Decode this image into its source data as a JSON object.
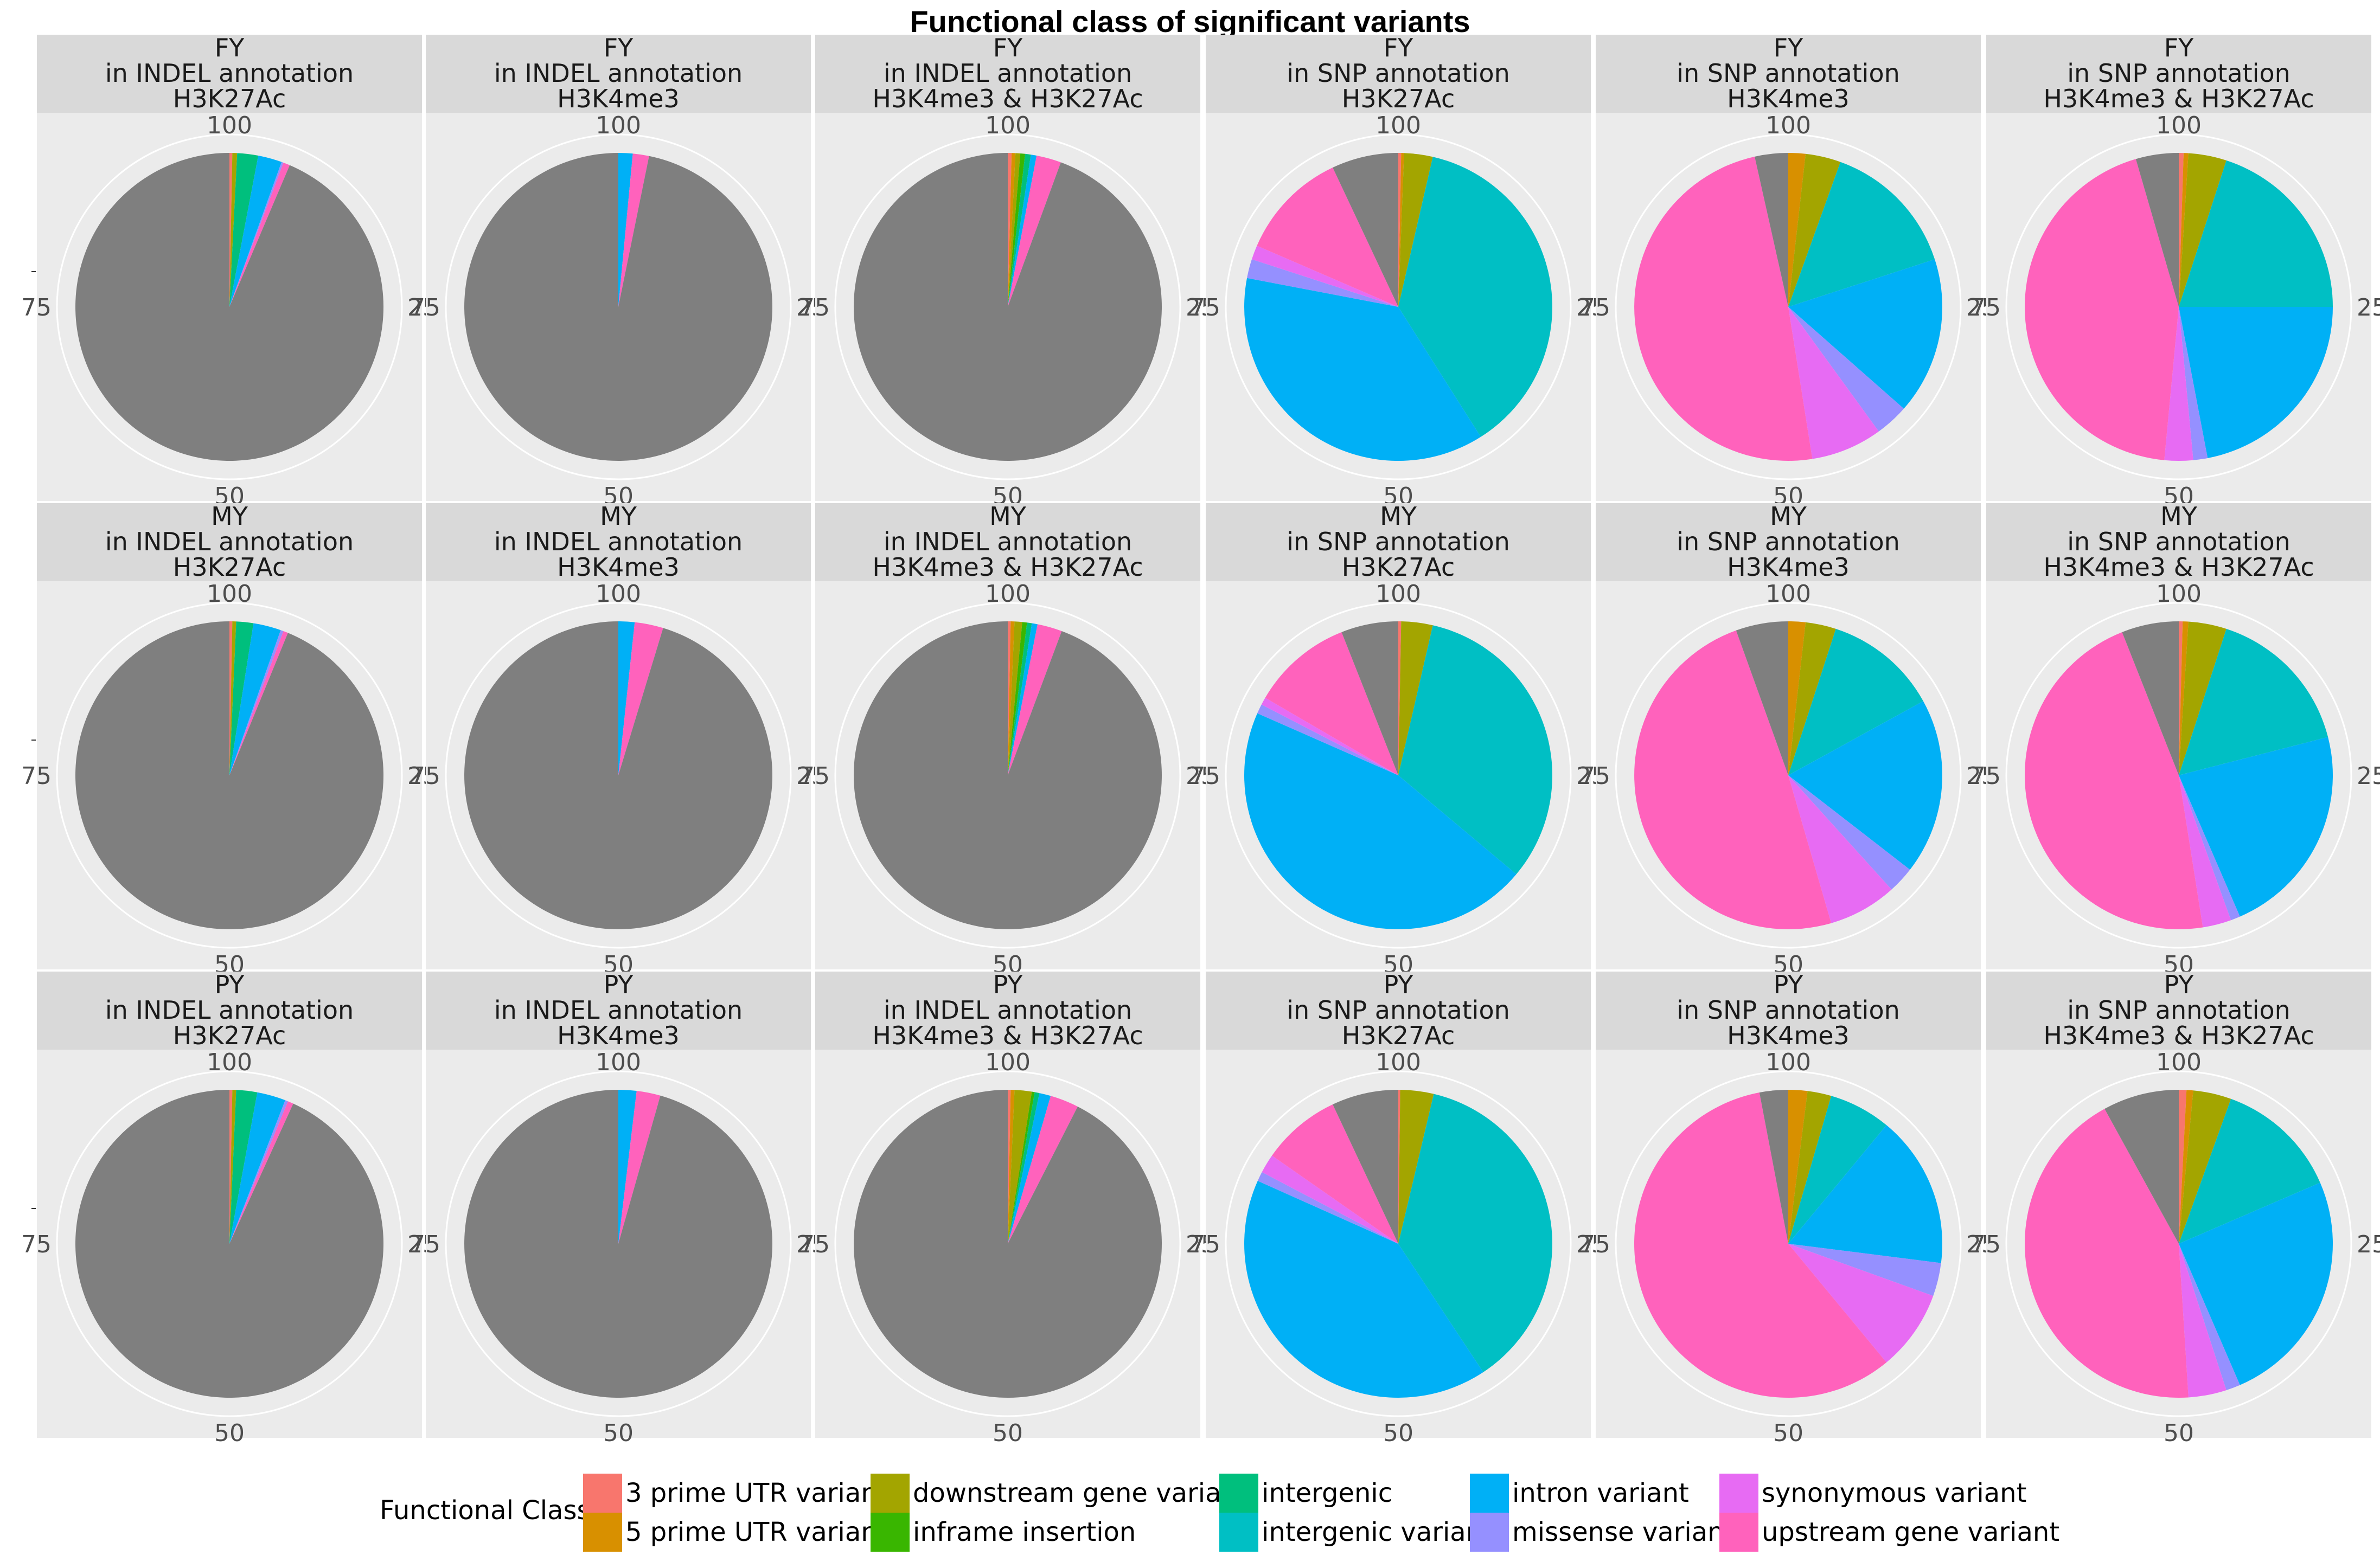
{
  "chart_data": {
    "type": "pie",
    "title": "Functional class of significant variants",
    "legend": {
      "title": "Functional Class",
      "position": "bottom",
      "entries": [
        {
          "name": "3 prime UTR variant",
          "color": "#F8766D"
        },
        {
          "name": "5 prime UTR variant",
          "color": "#D89000"
        },
        {
          "name": "downstream gene variant",
          "color": "#A3A500"
        },
        {
          "name": "inframe insertion",
          "color": "#39B600"
        },
        {
          "name": "intergenic",
          "color": "#00BF7D"
        },
        {
          "name": "intergenic variant",
          "color": "#00BFC4"
        },
        {
          "name": "intron variant",
          "color": "#00B0F6"
        },
        {
          "name": "missense variant",
          "color": "#9590FF"
        },
        {
          "name": "synonymous variant",
          "color": "#E76BF3"
        },
        {
          "name": "upstream gene variant",
          "color": "#FF62BC"
        }
      ],
      "other_color": "#7F7F7F"
    },
    "angle_ticks": [
      "100",
      "25",
      "50",
      "75"
    ],
    "panels": [
      {
        "group": "FY",
        "annotation": "in INDEL annotation",
        "mark": "H3K27Ac",
        "slices": [
          {
            "c": "3 prime UTR variant",
            "v": 0.3
          },
          {
            "c": "downstream gene variant",
            "v": 0.5
          },
          {
            "c": "intergenic",
            "v": 2.2
          },
          {
            "c": "intron variant",
            "v": 2.5
          },
          {
            "c": "missense variant",
            "v": 0.2
          },
          {
            "c": "upstream gene variant",
            "v": 0.7
          },
          {
            "c": "other",
            "v": 93.6
          }
        ]
      },
      {
        "group": "FY",
        "annotation": "in INDEL annotation",
        "mark": "H3K4me3",
        "slices": [
          {
            "c": "intron variant",
            "v": 1.5
          },
          {
            "c": "upstream gene variant",
            "v": 1.7
          },
          {
            "c": "other",
            "v": 96.8
          }
        ]
      },
      {
        "group": "FY",
        "annotation": "in INDEL annotation",
        "mark": "H3K4me3 & H3K27Ac",
        "slices": [
          {
            "c": "3 prime UTR variant",
            "v": 0.4
          },
          {
            "c": "5 prime UTR variant",
            "v": 0.4
          },
          {
            "c": "downstream gene variant",
            "v": 0.5
          },
          {
            "c": "inframe insertion",
            "v": 0.5
          },
          {
            "c": "intergenic",
            "v": 0.6
          },
          {
            "c": "intron variant",
            "v": 0.6
          },
          {
            "c": "upstream gene variant",
            "v": 2.6
          },
          {
            "c": "other",
            "v": 94.4
          }
        ]
      },
      {
        "group": "FY",
        "annotation": "in SNP annotation",
        "mark": "H3K27Ac",
        "slices": [
          {
            "c": "3 prime UTR variant",
            "v": 0.3
          },
          {
            "c": "5 prime UTR variant",
            "v": 0.3
          },
          {
            "c": "downstream gene variant",
            "v": 3.0
          },
          {
            "c": "intergenic variant",
            "v": 37.4
          },
          {
            "c": "intron variant",
            "v": 37.0
          },
          {
            "c": "missense variant",
            "v": 2.0
          },
          {
            "c": "synonymous variant",
            "v": 1.5
          },
          {
            "c": "upstream gene variant",
            "v": 11.5
          },
          {
            "c": "other",
            "v": 7.0
          }
        ]
      },
      {
        "group": "FY",
        "annotation": "in SNP annotation",
        "mark": "H3K4me3",
        "slices": [
          {
            "c": "5 prime UTR variant",
            "v": 1.8
          },
          {
            "c": "downstream gene variant",
            "v": 3.7
          },
          {
            "c": "intergenic variant",
            "v": 14.5
          },
          {
            "c": "intron variant",
            "v": 16.5
          },
          {
            "c": "missense variant",
            "v": 3.5
          },
          {
            "c": "synonymous variant",
            "v": 7.5
          },
          {
            "c": "upstream gene variant",
            "v": 49.0
          },
          {
            "c": "other",
            "v": 3.5
          }
        ]
      },
      {
        "group": "FY",
        "annotation": "in SNP annotation",
        "mark": "H3K4me3 & H3K27Ac",
        "slices": [
          {
            "c": "3 prime UTR variant",
            "v": 0.5
          },
          {
            "c": "5 prime UTR variant",
            "v": 0.5
          },
          {
            "c": "downstream gene variant",
            "v": 4.0
          },
          {
            "c": "intergenic variant",
            "v": 20.0
          },
          {
            "c": "intron variant",
            "v": 22.0
          },
          {
            "c": "missense variant",
            "v": 1.5
          },
          {
            "c": "synonymous variant",
            "v": 3.0
          },
          {
            "c": "upstream gene variant",
            "v": 44.0
          },
          {
            "c": "other",
            "v": 4.5
          }
        ]
      },
      {
        "group": "MY",
        "annotation": "in INDEL annotation",
        "mark": "H3K27Ac",
        "slices": [
          {
            "c": "3 prime UTR variant",
            "v": 0.3
          },
          {
            "c": "downstream gene variant",
            "v": 0.4
          },
          {
            "c": "intergenic",
            "v": 1.8
          },
          {
            "c": "intron variant",
            "v": 2.9
          },
          {
            "c": "missense variant",
            "v": 0.3
          },
          {
            "c": "upstream gene variant",
            "v": 0.5
          },
          {
            "c": "other",
            "v": 93.8
          }
        ]
      },
      {
        "group": "MY",
        "annotation": "in INDEL annotation",
        "mark": "H3K4me3",
        "slices": [
          {
            "c": "intron variant",
            "v": 1.7
          },
          {
            "c": "upstream gene variant",
            "v": 3.0
          },
          {
            "c": "other",
            "v": 95.3
          }
        ]
      },
      {
        "group": "MY",
        "annotation": "in INDEL annotation",
        "mark": "H3K4me3 & H3K27Ac",
        "slices": [
          {
            "c": "3 prime UTR variant",
            "v": 0.3
          },
          {
            "c": "5 prime UTR variant",
            "v": 0.4
          },
          {
            "c": "downstream gene variant",
            "v": 0.8
          },
          {
            "c": "inframe insertion",
            "v": 0.5
          },
          {
            "c": "intergenic",
            "v": 0.5
          },
          {
            "c": "intron variant",
            "v": 0.6
          },
          {
            "c": "upstream gene variant",
            "v": 2.6
          },
          {
            "c": "other",
            "v": 94.3
          }
        ]
      },
      {
        "group": "MY",
        "annotation": "in SNP annotation",
        "mark": "H3K27Ac",
        "slices": [
          {
            "c": "3 prime UTR variant",
            "v": 0.3
          },
          {
            "c": "downstream gene variant",
            "v": 3.3
          },
          {
            "c": "intergenic variant",
            "v": 32.5
          },
          {
            "c": "intron variant",
            "v": 45.5
          },
          {
            "c": "missense variant",
            "v": 1.0
          },
          {
            "c": "synonymous variant",
            "v": 0.8
          },
          {
            "c": "upstream gene variant",
            "v": 10.6
          },
          {
            "c": "other",
            "v": 6.0
          }
        ]
      },
      {
        "group": "MY",
        "annotation": "in SNP annotation",
        "mark": "H3K4me3",
        "slices": [
          {
            "c": "5 prime UTR variant",
            "v": 1.8
          },
          {
            "c": "downstream gene variant",
            "v": 3.2
          },
          {
            "c": "intergenic variant",
            "v": 12.0
          },
          {
            "c": "intron variant",
            "v": 18.5
          },
          {
            "c": "missense variant",
            "v": 2.8
          },
          {
            "c": "synonymous variant",
            "v": 7.2
          },
          {
            "c": "upstream gene variant",
            "v": 49.0
          },
          {
            "c": "other",
            "v": 5.5
          }
        ]
      },
      {
        "group": "MY",
        "annotation": "in SNP annotation",
        "mark": "H3K4me3 & H3K27Ac",
        "slices": [
          {
            "c": "3 prime UTR variant",
            "v": 0.4
          },
          {
            "c": "5 prime UTR variant",
            "v": 0.6
          },
          {
            "c": "downstream gene variant",
            "v": 4.0
          },
          {
            "c": "intergenic variant",
            "v": 16.0
          },
          {
            "c": "intron variant",
            "v": 22.5
          },
          {
            "c": "missense variant",
            "v": 1.0
          },
          {
            "c": "synonymous variant",
            "v": 3.0
          },
          {
            "c": "upstream gene variant",
            "v": 46.5
          },
          {
            "c": "other",
            "v": 6.0
          }
        ]
      },
      {
        "group": "PY",
        "annotation": "in INDEL annotation",
        "mark": "H3K27Ac",
        "slices": [
          {
            "c": "3 prime UTR variant",
            "v": 0.3
          },
          {
            "c": "downstream gene variant",
            "v": 0.4
          },
          {
            "c": "intergenic",
            "v": 2.2
          },
          {
            "c": "intron variant",
            "v": 3.0
          },
          {
            "c": "missense variant",
            "v": 0.3
          },
          {
            "c": "upstream gene variant",
            "v": 0.6
          },
          {
            "c": "other",
            "v": 93.2
          }
        ]
      },
      {
        "group": "PY",
        "annotation": "in INDEL annotation",
        "mark": "H3K4me3",
        "slices": [
          {
            "c": "intron variant",
            "v": 1.9
          },
          {
            "c": "upstream gene variant",
            "v": 2.5
          },
          {
            "c": "other",
            "v": 95.6
          }
        ]
      },
      {
        "group": "PY",
        "annotation": "in INDEL annotation",
        "mark": "H3K4me3 & H3K27Ac",
        "slices": [
          {
            "c": "3 prime UTR variant",
            "v": 0.3
          },
          {
            "c": "5 prime UTR variant",
            "v": 0.4
          },
          {
            "c": "downstream gene variant",
            "v": 1.8
          },
          {
            "c": "inframe insertion",
            "v": 0.3
          },
          {
            "c": "intergenic",
            "v": 0.5
          },
          {
            "c": "intron variant",
            "v": 1.2
          },
          {
            "c": "upstream gene variant",
            "v": 3.0
          },
          {
            "c": "other",
            "v": 92.5
          }
        ]
      },
      {
        "group": "PY",
        "annotation": "in SNP annotation",
        "mark": "H3K27Ac",
        "slices": [
          {
            "c": "3 prime UTR variant",
            "v": 0.2
          },
          {
            "c": "downstream gene variant",
            "v": 3.5
          },
          {
            "c": "intergenic variant",
            "v": 37.0
          },
          {
            "c": "intron variant",
            "v": 41.0
          },
          {
            "c": "missense variant",
            "v": 1.0
          },
          {
            "c": "synonymous variant",
            "v": 2.0
          },
          {
            "c": "upstream gene variant",
            "v": 8.3
          },
          {
            "c": "other",
            "v": 7.0
          }
        ]
      },
      {
        "group": "PY",
        "annotation": "in SNP annotation",
        "mark": "H3K4me3",
        "slices": [
          {
            "c": "5 prime UTR variant",
            "v": 2.0
          },
          {
            "c": "downstream gene variant",
            "v": 2.5
          },
          {
            "c": "intergenic variant",
            "v": 6.5
          },
          {
            "c": "intron variant",
            "v": 16.0
          },
          {
            "c": "missense variant",
            "v": 3.5
          },
          {
            "c": "synonymous variant",
            "v": 8.5
          },
          {
            "c": "upstream gene variant",
            "v": 58.0
          },
          {
            "c": "other",
            "v": 3.0
          }
        ]
      },
      {
        "group": "PY",
        "annotation": "in SNP annotation",
        "mark": "H3K4me3 & H3K27Ac",
        "slices": [
          {
            "c": "3 prime UTR variant",
            "v": 0.8
          },
          {
            "c": "5 prime UTR variant",
            "v": 0.7
          },
          {
            "c": "downstream gene variant",
            "v": 4.0
          },
          {
            "c": "intergenic variant",
            "v": 13.0
          },
          {
            "c": "intron variant",
            "v": 25.0
          },
          {
            "c": "missense variant",
            "v": 1.5
          },
          {
            "c": "synonymous variant",
            "v": 4.0
          },
          {
            "c": "upstream gene variant",
            "v": 43.0
          },
          {
            "c": "other",
            "v": 8.0
          }
        ]
      }
    ]
  }
}
